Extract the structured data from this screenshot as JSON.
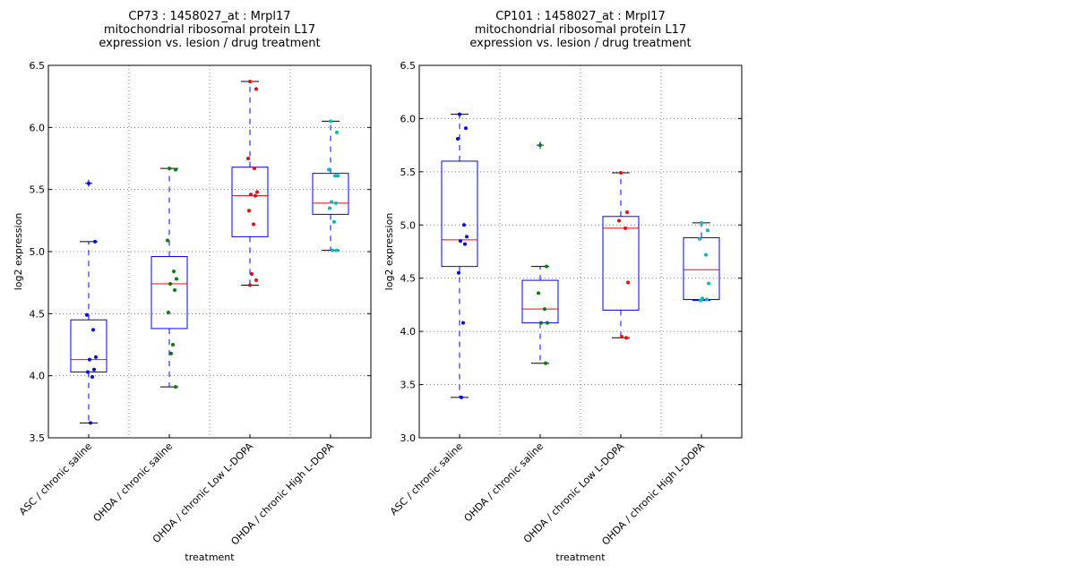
{
  "chart_data": [
    {
      "type": "box",
      "title_lines": [
        "CP73 : 1458027_at : Mrpl17",
        "mitochondrial ribosomal protein L17",
        "expression vs. lesion / drug treatment"
      ],
      "xlabel": "treatment",
      "ylabel": "log2 expression",
      "ylim": [
        3.5,
        6.5
      ],
      "yticks": [
        "3.5",
        "4.0",
        "4.5",
        "5.0",
        "5.5",
        "6.0",
        "6.5"
      ],
      "grid": true,
      "categories": [
        "ASC / chronic saline",
        "OHDA / chronic saline",
        "OHDA / chronic Low L-DOPA",
        "OHDA / chronic High L-DOPA"
      ],
      "boxes": [
        {
          "q1": 4.03,
          "median": 4.13,
          "q3": 4.45,
          "whisker_low": 3.62,
          "whisker_high": 5.08,
          "fliers": [
            5.55
          ],
          "color": "#0000ff",
          "points": [
            5.55,
            5.08,
            4.49,
            4.37,
            4.15,
            4.13,
            4.05,
            4.03,
            3.99,
            3.62
          ]
        },
        {
          "q1": 4.38,
          "median": 4.74,
          "q3": 4.96,
          "whisker_low": 3.91,
          "whisker_high": 5.67,
          "fliers": [],
          "color": "#008000",
          "points": [
            5.67,
            5.66,
            5.09,
            4.84,
            4.78,
            4.74,
            4.69,
            4.51,
            4.25,
            4.18,
            3.91
          ]
        },
        {
          "q1": 5.12,
          "median": 5.45,
          "q3": 5.68,
          "whisker_low": 4.73,
          "whisker_high": 6.37,
          "fliers": [],
          "color": "#ff0000",
          "points": [
            6.37,
            6.31,
            5.75,
            5.67,
            5.48,
            5.46,
            5.45,
            5.33,
            5.22,
            4.82,
            4.77,
            4.73
          ]
        },
        {
          "q1": 5.3,
          "median": 5.39,
          "q3": 5.63,
          "whisker_low": 5.01,
          "whisker_high": 6.05,
          "fliers": [],
          "color": "#00bfbf",
          "points": [
            6.05,
            5.96,
            5.66,
            5.61,
            5.61,
            5.4,
            5.39,
            5.35,
            5.24,
            5.01,
            5.01
          ]
        }
      ]
    },
    {
      "type": "box",
      "title_lines": [
        "CP101 : 1458027_at : Mrpl17",
        "mitochondrial ribosomal protein L17",
        "expression vs. lesion / drug treatment"
      ],
      "xlabel": "treatment",
      "ylabel": "log2 expression",
      "ylim": [
        3.0,
        6.5
      ],
      "yticks": [
        "3.0",
        "3.5",
        "4.0",
        "4.5",
        "5.0",
        "5.5",
        "6.0",
        "6.5"
      ],
      "grid": true,
      "categories": [
        "ASC / chronic saline",
        "OHDA / chronic saline",
        "OHDA / chronic Low L-DOPA",
        "OHDA / chronic High L-DOPA"
      ],
      "boxes": [
        {
          "q1": 4.61,
          "median": 4.86,
          "q3": 5.6,
          "whisker_low": 3.38,
          "whisker_high": 6.04,
          "fliers": [],
          "color": "#0000ff",
          "points": [
            6.04,
            5.91,
            5.81,
            5.0,
            4.89,
            4.85,
            4.82,
            4.55,
            4.08,
            3.38
          ]
        },
        {
          "q1": 4.08,
          "median": 4.21,
          "q3": 4.48,
          "whisker_low": 3.7,
          "whisker_high": 4.61,
          "fliers": [
            5.75
          ],
          "color": "#008000",
          "points": [
            5.75,
            4.61,
            4.36,
            4.21,
            4.08,
            4.08,
            3.7
          ]
        },
        {
          "q1": 4.2,
          "median": 4.97,
          "q3": 5.08,
          "whisker_low": 3.94,
          "whisker_high": 5.49,
          "fliers": [],
          "color": "#ff0000",
          "points": [
            5.49,
            5.12,
            5.04,
            4.97,
            4.46,
            3.95,
            3.94
          ]
        },
        {
          "q1": 4.3,
          "median": 4.58,
          "q3": 4.88,
          "whisker_low": 4.29,
          "whisker_high": 5.02,
          "fliers": [],
          "color": "#00bfbf",
          "points": [
            5.02,
            4.95,
            4.87,
            4.72,
            4.45,
            4.31,
            4.3,
            4.29
          ]
        }
      ]
    }
  ]
}
